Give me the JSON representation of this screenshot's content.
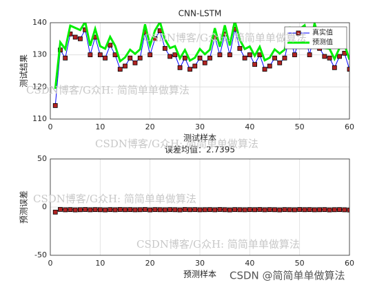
{
  "chart_data": [
    {
      "type": "line",
      "title": "CNN-LSTM",
      "xlabel": "测试样本",
      "ylabel": "测试结果",
      "x": [
        1,
        2,
        3,
        4,
        5,
        6,
        7,
        8,
        9,
        10,
        11,
        12,
        13,
        14,
        15,
        16,
        17,
        18,
        19,
        20,
        21,
        22,
        23,
        24,
        25,
        26,
        27,
        28,
        29,
        30,
        31,
        32,
        33,
        34,
        35,
        36,
        37,
        38,
        39,
        40,
        41,
        42,
        43,
        44,
        45,
        46,
        47,
        48,
        49,
        50,
        51,
        52,
        53,
        54,
        55,
        56,
        57,
        58,
        59,
        60
      ],
      "xlim": [
        0,
        60
      ],
      "xticks": [
        0,
        10,
        20,
        30,
        40,
        50,
        60
      ],
      "ylim": [
        110,
        140
      ],
      "yticks": [
        110,
        120,
        130,
        140
      ],
      "grid": true,
      "legend": "upper right",
      "series": [
        {
          "name": "真实值",
          "color": "#0000ff",
          "marker": "square",
          "marker_color": "#b22222",
          "line_width": 1,
          "values": [
            114.2,
            131.5,
            129,
            136.5,
            135.5,
            135,
            137.8,
            130,
            135.5,
            130,
            129,
            133,
            130,
            125.5,
            126.5,
            129,
            127.5,
            129,
            137,
            130,
            135,
            137.5,
            132,
            129.5,
            130,
            126,
            129,
            125.5,
            126.5,
            129,
            127.5,
            129,
            135.5,
            130,
            136.5,
            130,
            138,
            132,
            129,
            130,
            127,
            130,
            125.5,
            126.5,
            129,
            127.5,
            129,
            136,
            130,
            135.5,
            136.5,
            130,
            137,
            132,
            129.5,
            129,
            126,
            129.5,
            130.5,
            125.5
          ]
        },
        {
          "name": "预测值",
          "color": "#00ee00",
          "line_width": 3,
          "values": [
            119.4,
            133.9,
            131.8,
            139.1,
            138.4,
            137.7,
            140.3,
            132.8,
            138.1,
            132.7,
            131.9,
            135.6,
            132.8,
            128,
            129.2,
            131.6,
            130.3,
            131.7,
            139.5,
            132.9,
            137.6,
            140.2,
            134.8,
            132.1,
            132.7,
            128.9,
            131.5,
            128.2,
            129.1,
            131.8,
            130.2,
            131.6,
            138.3,
            132.5,
            139.2,
            132.9,
            140.6,
            134.7,
            131.8,
            132.6,
            129.7,
            132.5,
            128.3,
            129.1,
            131.7,
            130.4,
            131.6,
            138.7,
            132.8,
            138,
            139.2,
            132.6,
            139.8,
            134.7,
            132.1,
            131.9,
            128.7,
            132.1,
            133.3,
            128.5
          ]
        }
      ]
    },
    {
      "type": "line",
      "title": "误差均值：2.7395",
      "xlabel": "预测样本",
      "ylabel": "预测误差",
      "x": [
        1,
        2,
        3,
        4,
        5,
        6,
        7,
        8,
        9,
        10,
        11,
        12,
        13,
        14,
        15,
        16,
        17,
        18,
        19,
        20,
        21,
        22,
        23,
        24,
        25,
        26,
        27,
        28,
        29,
        30,
        31,
        32,
        33,
        34,
        35,
        36,
        37,
        38,
        39,
        40,
        41,
        42,
        43,
        44,
        45,
        46,
        47,
        48,
        49,
        50,
        51,
        52,
        53,
        54,
        55,
        56,
        57,
        58,
        59,
        60
      ],
      "xlim": [
        0,
        60
      ],
      "xticks": [
        0,
        10,
        20,
        30,
        40,
        50,
        60
      ],
      "ylim": [
        -50,
        50
      ],
      "yticks": [
        -50,
        0,
        50
      ],
      "grid": true,
      "series": [
        {
          "color": "#000000",
          "marker": "square",
          "marker_color": "#b22222",
          "line_width": 1,
          "values": [
            -5.2,
            -2.4,
            -2.8,
            -2.6,
            -2.9,
            -2.7,
            -2.5,
            -2.8,
            -2.6,
            -2.7,
            -2.9,
            -2.6,
            -2.8,
            -2.5,
            -2.7,
            -2.6,
            -2.8,
            -2.7,
            -2.5,
            -2.9,
            -2.6,
            -2.7,
            -2.8,
            -2.6,
            -2.7,
            -2.9,
            -2.5,
            -2.7,
            -2.6,
            -2.8,
            -2.7,
            -2.6,
            -2.8,
            -2.5,
            -2.7,
            -2.9,
            -2.6,
            -2.7,
            -2.8,
            -2.6,
            -2.7,
            -2.5,
            -2.8,
            -2.6,
            -2.7,
            -2.9,
            -2.6,
            -2.7,
            -2.8,
            -2.5,
            -2.7,
            -2.6,
            -2.8,
            -2.7,
            -2.6,
            -2.9,
            -2.7,
            -2.6,
            -2.8,
            -3.0
          ]
        }
      ]
    }
  ],
  "watermarks": [
    "CSDN博客/G众H: 简简单单做算法",
    "CSDN博客/G众H: 简简单单做算法",
    "CSDN博客/G众H: 简简单单做算法",
    "CSDN博客/G众H: 简简单单做算法",
    "CSDN博客/G众H: 简简单单做算法"
  ],
  "footer": "CSDN @简简单单做算法"
}
